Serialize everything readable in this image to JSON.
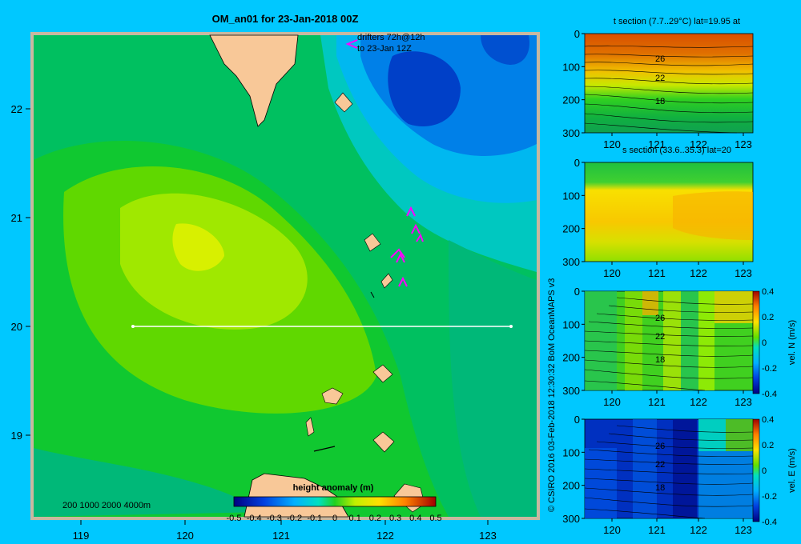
{
  "map": {
    "title": "OM_an01 for 23-Jan-2018 00Z",
    "lon_ticks": [
      "119",
      "120",
      "121",
      "122",
      "123"
    ],
    "lat_ticks": [
      "22",
      "21",
      "20",
      "19"
    ],
    "drifters_line1": "drifters 72h@12h",
    "drifters_line2": "to 23-Jan 12Z",
    "depth_legend": "200  1000  2000  4000m",
    "colorbar_title": "height anomaly  (m)",
    "colorbar_ticks": [
      "-0.5",
      "-0.4",
      "-0.3",
      "-0.2",
      "-0.1",
      "0",
      "0.1",
      "0.2",
      "0.3",
      "0.4",
      "0.5"
    ],
    "colors": {
      "background": "#00c8ff",
      "land": "#f8c898",
      "section_line": "#ffffff",
      "drifters": "#ff00ff"
    }
  },
  "credit": "© CSIRO 2016   03-Feb-2018 12:30:32 BoM OceanMAPS v3",
  "panels": [
    {
      "id": "t-section",
      "title": "t section (7.7..29°C) lat=19.95 at",
      "y_ticks": [
        "0",
        "100",
        "200",
        "300"
      ],
      "x_ticks": [
        "120",
        "121",
        "122",
        "123"
      ],
      "contour_labels": [
        "26",
        "22",
        "18"
      ],
      "colorbar": null
    },
    {
      "id": "s-section",
      "title": "s section (33.6..35.3) lat=20",
      "y_ticks": [
        "0",
        "100",
        "200",
        "300"
      ],
      "x_ticks": [
        "120",
        "121",
        "122",
        "123"
      ],
      "contour_labels": [],
      "colorbar": null
    },
    {
      "id": "vel-n",
      "title": "",
      "y_ticks": [
        "0",
        "100",
        "200",
        "300"
      ],
      "x_ticks": [
        "120",
        "121",
        "122",
        "123"
      ],
      "contour_labels": [
        "26",
        "22",
        "18"
      ],
      "colorbar": {
        "label": "vel. N  (m/s)",
        "ticks": [
          "0.4",
          "0.2",
          "0",
          "-0.2",
          "-0.4"
        ]
      }
    },
    {
      "id": "vel-e",
      "title": "",
      "y_ticks": [
        "0",
        "100",
        "200",
        "300"
      ],
      "x_ticks": [
        "120",
        "121",
        "122",
        "123"
      ],
      "contour_labels": [
        "26",
        "22",
        "18"
      ],
      "colorbar": {
        "label": "vel. E  (m/s)",
        "ticks": [
          "0.4",
          "0.2",
          "0",
          "-0.2",
          "-0.4"
        ]
      }
    }
  ]
}
